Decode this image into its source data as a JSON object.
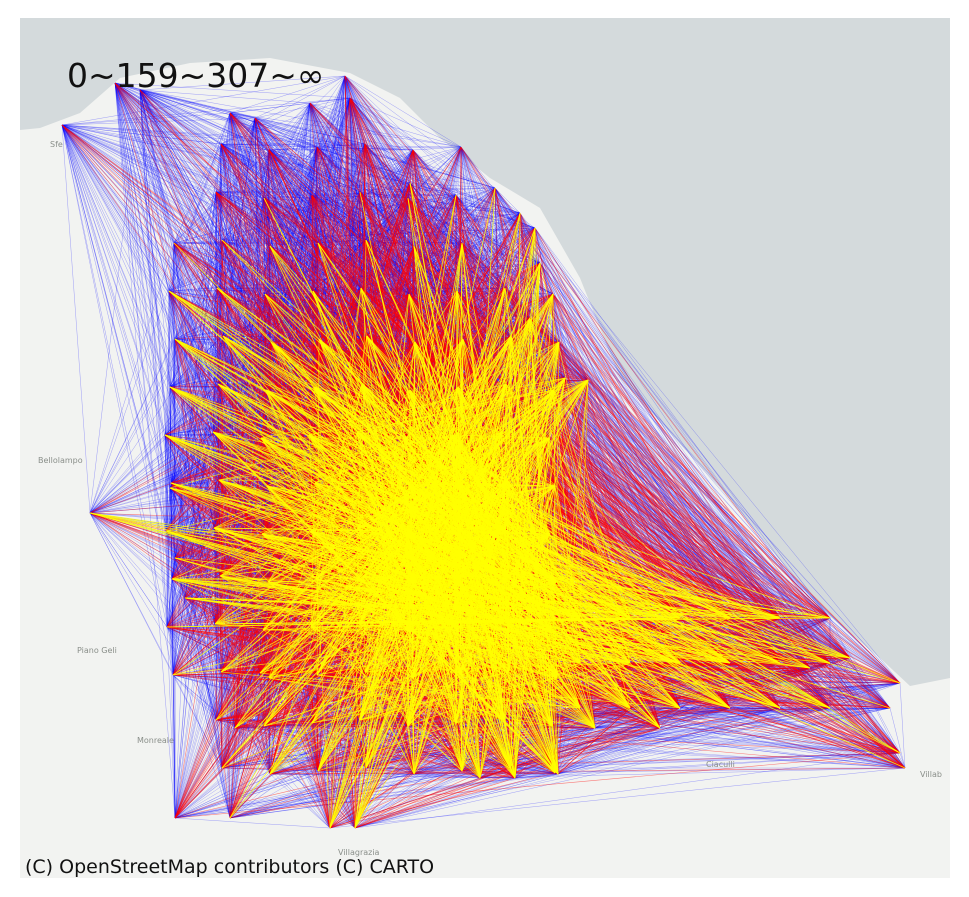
{
  "legend": {
    "text": "0~159~307~∞"
  },
  "attribution": "(C) OpenStreetMap contributors (C) CARTO",
  "places": [
    {
      "id": "sferracavallo",
      "name": "Sfe"
    },
    {
      "id": "bellolampo",
      "name": "Bellolampo"
    },
    {
      "id": "piano-geli",
      "name": "Piano Geli"
    },
    {
      "id": "monreale",
      "name": "Monreale"
    },
    {
      "id": "ciaculli",
      "name": "Ciaculli"
    },
    {
      "id": "villabate",
      "name": "Villab"
    },
    {
      "id": "villagrazia",
      "name": "Villagrazia"
    }
  ],
  "colors": {
    "sea": "#d4dadc",
    "land": "#f2f3f1",
    "low": "#0000ff",
    "mid": "#ff0000",
    "high": "#ffff00"
  }
}
